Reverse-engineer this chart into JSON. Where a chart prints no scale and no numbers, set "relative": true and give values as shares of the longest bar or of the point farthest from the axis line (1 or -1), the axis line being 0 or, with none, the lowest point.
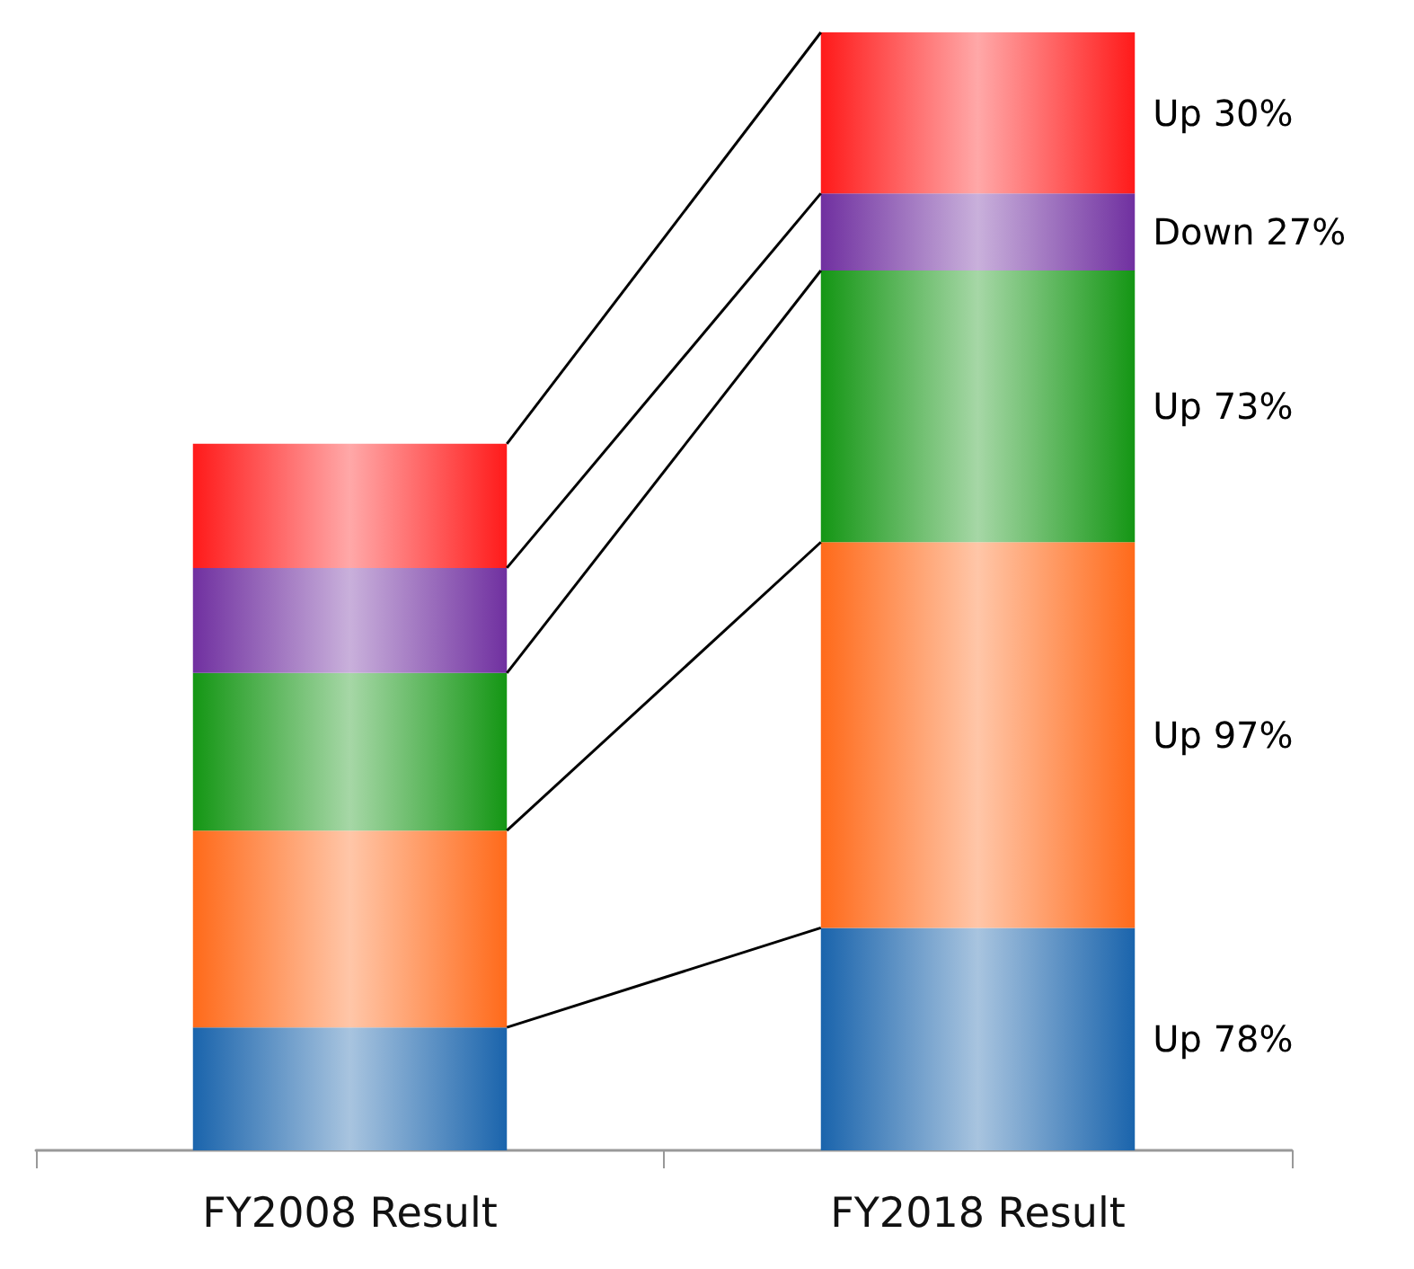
{
  "chart_data": {
    "type": "bar",
    "stacked": true,
    "relative": true,
    "categories": [
      "FY2008 Result",
      "FY2018 Result"
    ],
    "series": [
      {
        "color": "#1a64ac",
        "values": [
          0.11,
          0.199
        ]
      },
      {
        "color": "#ff6a1a",
        "values": [
          0.176,
          0.345
        ]
      },
      {
        "color": "#149614",
        "values": [
          0.141,
          0.243
        ]
      },
      {
        "color": "#7030a0",
        "values": [
          0.094,
          0.069
        ]
      },
      {
        "color": "#ff1a1a",
        "values": [
          0.111,
          0.144
        ]
      }
    ],
    "annotations": [
      "Up 78%",
      "Up 97%",
      "Up 73%",
      "Down 27%",
      "Up 30%"
    ]
  }
}
